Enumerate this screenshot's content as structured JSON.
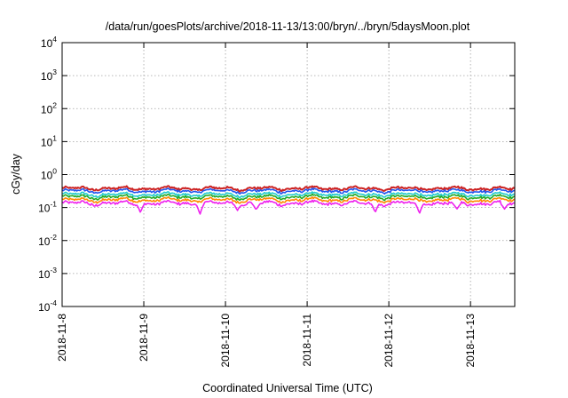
{
  "chart_data": {
    "type": "line",
    "title": "/data/run/goesPlots/archive/2018-11-13/13:00/bryn/../bryn/5daysMoon.plot",
    "xlabel": "Coordinated Universal Time (UTC)",
    "ylabel": "cGy/day",
    "yscale": "log",
    "ylim": [
      0.0001,
      10000
    ],
    "xlim": [
      "2018-11-08T00:00",
      "2018-11-13T13:00"
    ],
    "grid": true,
    "legend": "none",
    "x_ticks": [
      "2018-11-8",
      "2018-11-9",
      "2018-11-10",
      "2018-11-11",
      "2018-11-12",
      "2018-11-13"
    ],
    "y_ticks": [
      {
        "base": "10",
        "exp": "-4",
        "value": 0.0001
      },
      {
        "base": "10",
        "exp": "-3",
        "value": 0.001
      },
      {
        "base": "10",
        "exp": "-2",
        "value": 0.01
      },
      {
        "base": "10",
        "exp": "-1",
        "value": 0.1
      },
      {
        "base": "10",
        "exp": "0",
        "value": 1
      },
      {
        "base": "10",
        "exp": "1",
        "value": 10
      },
      {
        "base": "10",
        "exp": "2",
        "value": 100
      },
      {
        "base": "10",
        "exp": "3",
        "value": 1000
      },
      {
        "base": "10",
        "exp": "4",
        "value": 10000
      }
    ],
    "series": [
      {
        "color": "#cc2222",
        "level": 0.38,
        "dips": []
      },
      {
        "color": "#2255ee",
        "level": 0.32,
        "dips": []
      },
      {
        "color": "#22cccc",
        "level": 0.25,
        "dips": []
      },
      {
        "color": "#22aa22",
        "level": 0.21,
        "dips": []
      },
      {
        "color": "#ff8800",
        "level": 0.17,
        "dips": []
      },
      {
        "color": "#ee22ee",
        "level": 0.135,
        "dips": [
          {
            "t": "2018-11-08T23:00",
            "value": 0.07
          },
          {
            "t": "2018-11-09T16:30",
            "value": 0.06
          },
          {
            "t": "2018-11-10T03:30",
            "value": 0.08
          },
          {
            "t": "2018-11-10T09:00",
            "value": 0.085
          },
          {
            "t": "2018-11-11T20:00",
            "value": 0.07
          },
          {
            "t": "2018-11-12T09:00",
            "value": 0.065
          },
          {
            "t": "2018-11-12T20:00",
            "value": 0.09
          },
          {
            "t": "2018-11-13T10:00",
            "value": 0.09
          }
        ]
      }
    ]
  }
}
